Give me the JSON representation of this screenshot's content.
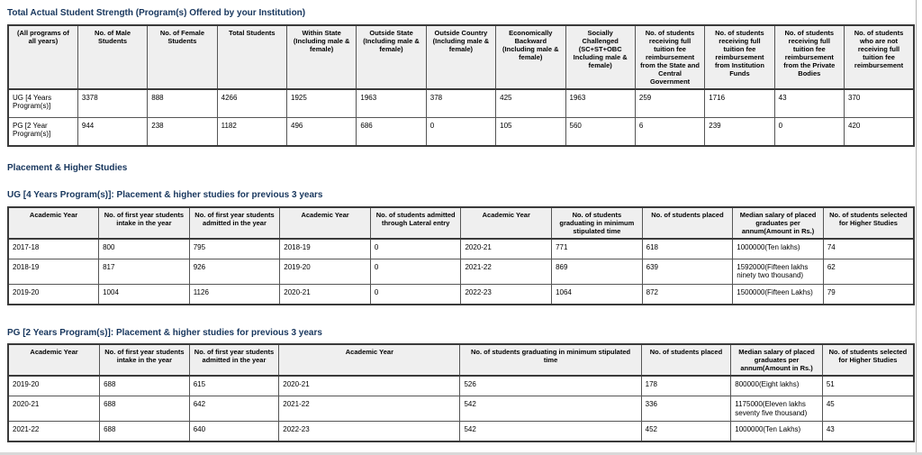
{
  "titles": {
    "strength": "Total Actual Student Strength (Program(s) Offered by your Institution)",
    "placement": "Placement & Higher Studies",
    "ug": "UG [4 Years Program(s)]: Placement & higher studies for previous 3 years",
    "pg": "PG [2 Years Program(s)]: Placement & higher studies for previous 3 years"
  },
  "colors": {
    "heading": "#17365d",
    "table_header_bg": "#efefef",
    "table_border": "#555555",
    "table_outer_border": "#3a3a3a",
    "page_edge_line": "#b5b5b5",
    "page_bottom_strip": "#d9d9d9"
  },
  "strength_table": {
    "headers": [
      "(All programs of all years)",
      "No. of Male Students",
      "No. of Female Students",
      "Total Students",
      "Within State (Including male & female)",
      "Outside State (Including male & female)",
      "Outside Country (Including male & female)",
      "Economically Backward (Including male & female)",
      "Socially Challenged (SC+ST+OBC Including male & female)",
      "No. of students receiving full tuition fee reimbursement from the State and Central Government",
      "No. of students receiving full tuition fee reimbursement from Institution Funds",
      "No. of students receiving full tuition fee reimbursement from the Private Bodies",
      "No. of students who are not receiving full tuition fee reimbursement"
    ],
    "rows": [
      [
        "UG [4 Years Program(s)]",
        "3378",
        "888",
        "4266",
        "1925",
        "1963",
        "378",
        "425",
        "1963",
        "259",
        "1716",
        "43",
        "370"
      ],
      [
        "PG [2 Year Program(s)]",
        "944",
        "238",
        "1182",
        "496",
        "686",
        "0",
        "105",
        "560",
        "6",
        "239",
        "0",
        "420"
      ]
    ]
  },
  "ug_table": {
    "headers": [
      "Academic Year",
      "No. of first year students intake in the year",
      "No. of first year students admitted in the year",
      "Academic Year",
      "No. of students admitted through Lateral entry",
      "Academic Year",
      "No. of students graduating in minimum stipulated time",
      "No. of students placed",
      "Median salary of placed graduates per annum(Amount in Rs.)",
      "No. of students selected for Higher Studies"
    ],
    "rows": [
      [
        "2017-18",
        "800",
        "795",
        "2018-19",
        "0",
        "2020-21",
        "771",
        "618",
        "1000000(Ten lakhs)",
        "74"
      ],
      [
        "2018-19",
        "817",
        "926",
        "2019-20",
        "0",
        "2021-22",
        "869",
        "639",
        "1592000(Fifteen lakhs ninety two thousand)",
        "62"
      ],
      [
        "2019-20",
        "1004",
        "1126",
        "2020-21",
        "0",
        "2022-23",
        "1064",
        "872",
        "1500000(Fifteen Lakhs)",
        "79"
      ]
    ]
  },
  "pg_table": {
    "headers": [
      "Academic Year",
      "No. of first year students intake in the year",
      "No. of first year students admitted in the year",
      "Academic Year",
      "No. of students graduating in minimum stipulated time",
      "No. of students placed",
      "Median salary of placed graduates per annum(Amount in Rs.)",
      "No. of students selected for Higher Studies"
    ],
    "col_widths": [
      "10.1%",
      "9.9%",
      "9.9%",
      "20%",
      "20%",
      "9.9%",
      "10.1%",
      "10.1%"
    ],
    "rows": [
      [
        "2019-20",
        "688",
        "615",
        "2020-21",
        "526",
        "178",
        "800000(Eight lakhs)",
        "51"
      ],
      [
        "2020-21",
        "688",
        "642",
        "2021-22",
        "542",
        "336",
        "1175000(Eleven lakhs seventy five thousand)",
        "45"
      ],
      [
        "2021-22",
        "688",
        "640",
        "2022-23",
        "542",
        "452",
        "1000000(Ten Lakhs)",
        "43"
      ]
    ]
  }
}
